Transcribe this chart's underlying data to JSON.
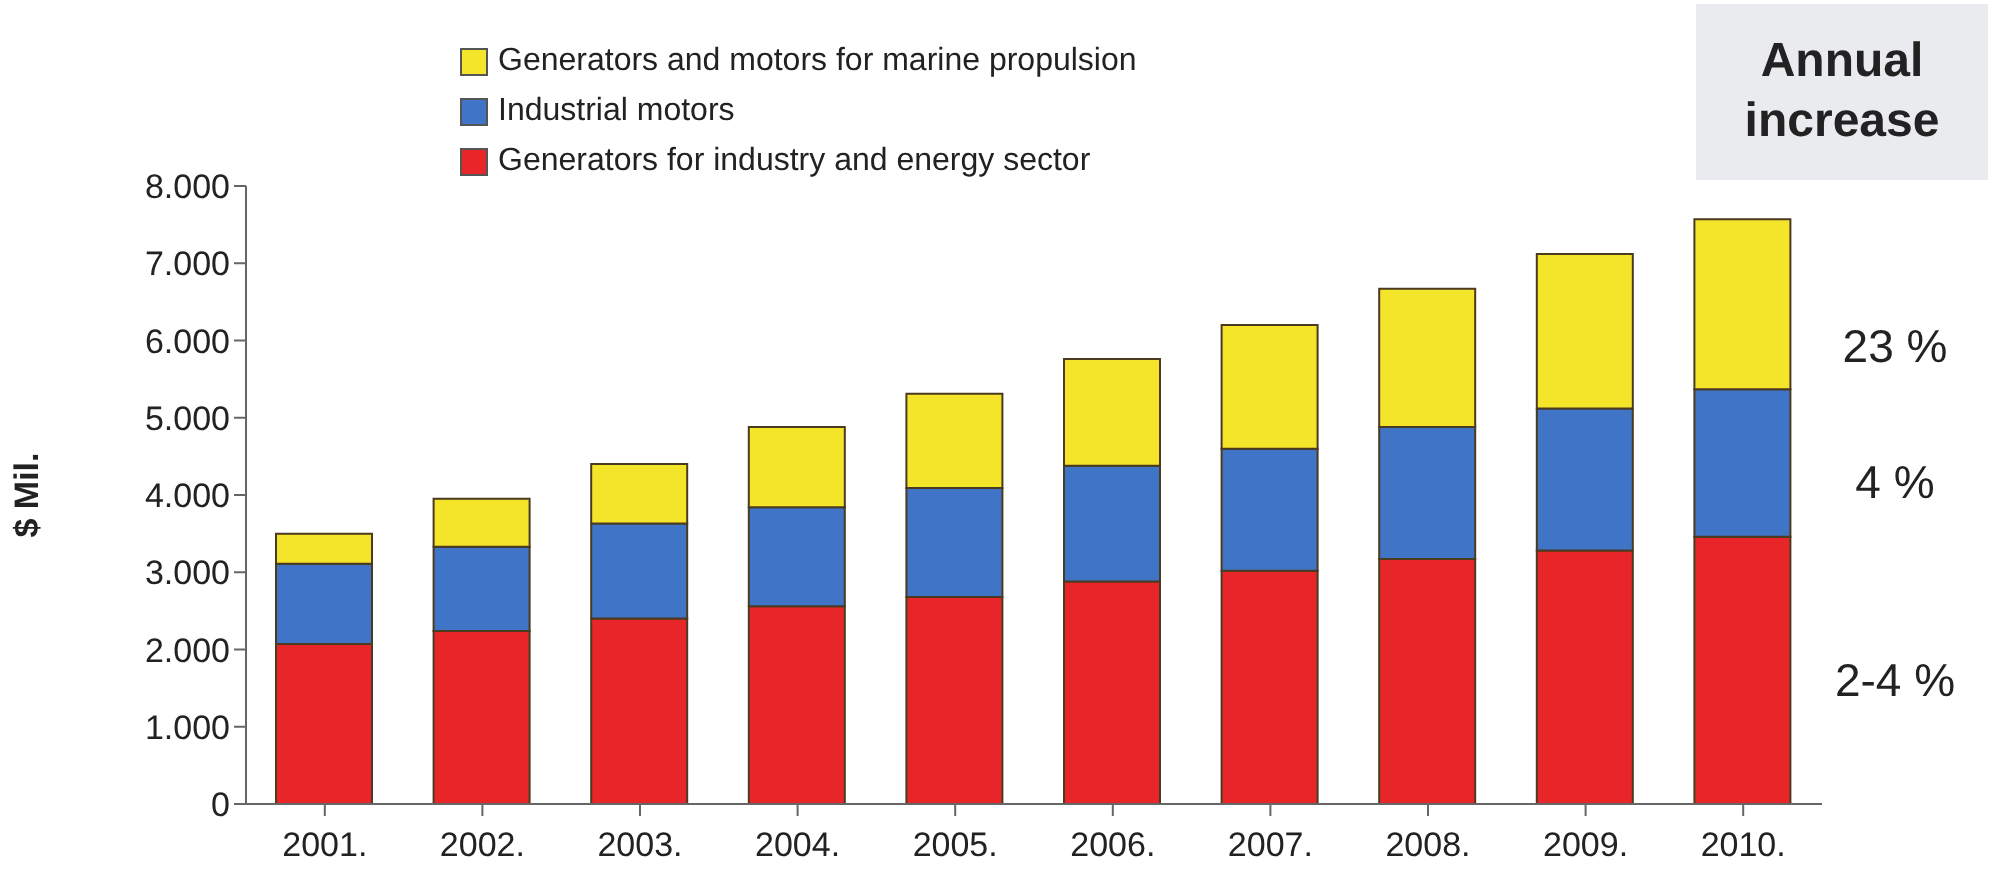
{
  "chart_data": {
    "type": "bar",
    "stacked": true,
    "ylabel": "$ Mil.",
    "categories": [
      "2001.",
      "2002.",
      "2003.",
      "2004.",
      "2005.",
      "2006.",
      "2007.",
      "2008.",
      "2009.",
      "2010."
    ],
    "series": [
      {
        "name": "Generators for industry and energy sector",
        "color": "#e8262a",
        "values": [
          2070,
          2240,
          2400,
          2560,
          2680,
          2880,
          3020,
          3170,
          3280,
          3460
        ]
      },
      {
        "name": "Industrial motors",
        "color": "#3f74c6",
        "values": [
          1040,
          1090,
          1230,
          1280,
          1410,
          1500,
          1580,
          1710,
          1840,
          1910
        ]
      },
      {
        "name": "Generators and motors for marine propulsion",
        "color": "#f5e52a",
        "values": [
          390,
          620,
          770,
          1040,
          1220,
          1380,
          1600,
          1790,
          2000,
          2200
        ]
      }
    ],
    "ylim": [
      0,
      8000
    ],
    "yticks": [
      {
        "value": 0,
        "label": "0"
      },
      {
        "value": 1000,
        "label": "1.000"
      },
      {
        "value": 2000,
        "label": "2.000"
      },
      {
        "value": 3000,
        "label": "3.000"
      },
      {
        "value": 4000,
        "label": "4.000"
      },
      {
        "value": 5000,
        "label": "5.000"
      },
      {
        "value": 6000,
        "label": "6.000"
      },
      {
        "value": 7000,
        "label": "7.000"
      },
      {
        "value": 8000,
        "label": "8.000"
      }
    ],
    "legend": "top left",
    "grid": false,
    "annotations": [
      "Annual increase",
      "23 %",
      "4 %",
      "2-4 %"
    ]
  }
}
